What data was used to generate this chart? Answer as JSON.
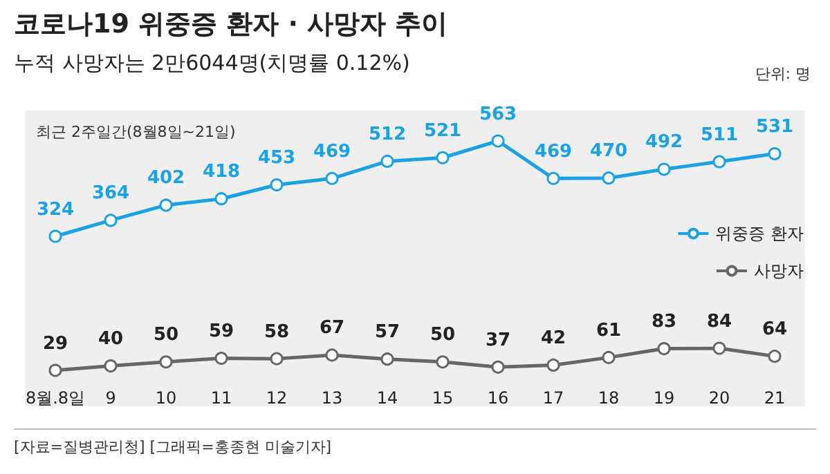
{
  "chart_data": [
    {
      "type": "line",
      "title": "코로나19 위중증 환자 · 사망자 추이",
      "subtitle": "누적 사망자는 2만6044명(치명률 0.12%)",
      "annotations": [
        "단위: 명",
        "최근 2주일간(8월8일~21일)"
      ],
      "categories": [
        null,
        null,
        null,
        null,
        null,
        null,
        null,
        null,
        null,
        null,
        null,
        null,
        null,
        null
      ],
      "series": [
        {
          "name": "위중증 환자",
          "color": "#1da1e2",
          "values": [
            324,
            364,
            402,
            418,
            453,
            469,
            512,
            521,
            563,
            469,
            470,
            492,
            511,
            531
          ]
        }
      ],
      "data_labels": true,
      "legend": "right",
      "marker": "circle",
      "line_style": "solid",
      "tick_labels": "x"
    },
    {
      "type": "line",
      "annotations": [
        "[자료=질병관리청] [그래픽=홍종현 미술기자]"
      ],
      "categories": [
        "8월.8일",
        "9",
        "10",
        "11",
        "12",
        "13",
        "14",
        "15",
        "16",
        "17",
        "18",
        "19",
        "20",
        "21"
      ],
      "series": [
        {
          "name": "사망자",
          "color": "#666666",
          "values": [
            29,
            40,
            50,
            59,
            58,
            67,
            57,
            50,
            37,
            42,
            61,
            83,
            84,
            64
          ]
        }
      ],
      "data_labels": true,
      "legend": "top right",
      "marker": "circle",
      "line_style": "solid",
      "tick_labels": "x"
    }
  ]
}
